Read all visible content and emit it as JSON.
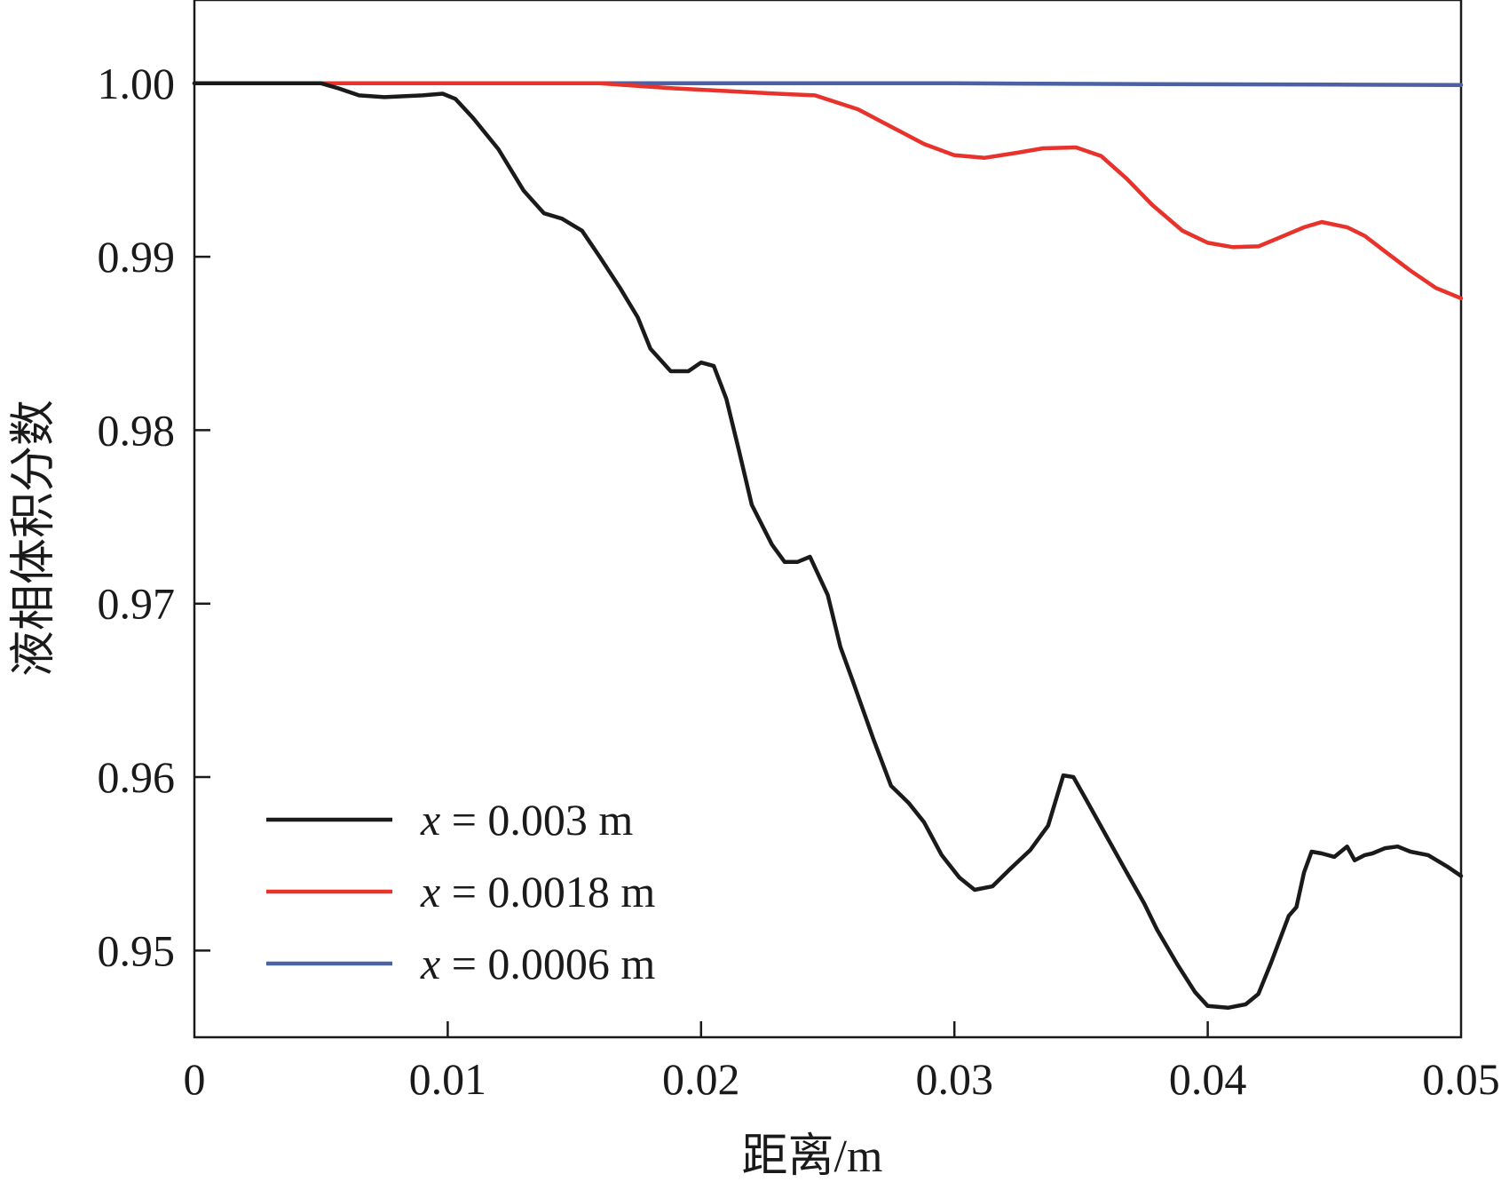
{
  "chart_data": {
    "type": "line",
    "xlabel": "距离/m",
    "ylabel": "液相体积分数",
    "xlim": [
      0,
      0.05
    ],
    "ylim": [
      0.945,
      1.0048
    ],
    "x_ticks": [
      0,
      0.01,
      0.02,
      0.03,
      0.04,
      0.05
    ],
    "x_tick_labels": [
      "0",
      "0.01",
      "0.02",
      "0.03",
      "0.04",
      "0.05"
    ],
    "y_ticks": [
      0.95,
      0.96,
      0.97,
      0.98,
      0.99,
      1.0
    ],
    "y_tick_labels": [
      "0.95",
      "0.96",
      "0.97",
      "0.98",
      "0.99",
      "1.00"
    ],
    "grid": false,
    "legend_position": "bottom-left",
    "series": [
      {
        "name": "x = 0.003 m",
        "legend_var": "x",
        "legend_rest": " = 0.003 m",
        "color": "#1a1a1a",
        "points": [
          [
            0,
            1.0
          ],
          [
            0.005,
            1.0
          ],
          [
            0.0057,
            0.9997
          ],
          [
            0.0065,
            0.9993
          ],
          [
            0.0075,
            0.9992
          ],
          [
            0.009,
            0.9993
          ],
          [
            0.0098,
            0.9994
          ],
          [
            0.0103,
            0.9991
          ],
          [
            0.011,
            0.998
          ],
          [
            0.012,
            0.9962
          ],
          [
            0.013,
            0.9938
          ],
          [
            0.0138,
            0.9925
          ],
          [
            0.0145,
            0.9922
          ],
          [
            0.0153,
            0.9915
          ],
          [
            0.016,
            0.99
          ],
          [
            0.0168,
            0.9882
          ],
          [
            0.0175,
            0.9865
          ],
          [
            0.018,
            0.9847
          ],
          [
            0.0188,
            0.9834
          ],
          [
            0.0195,
            0.9834
          ],
          [
            0.02,
            0.9839
          ],
          [
            0.0205,
            0.9837
          ],
          [
            0.021,
            0.9818
          ],
          [
            0.0215,
            0.9788
          ],
          [
            0.022,
            0.9757
          ],
          [
            0.0228,
            0.9734
          ],
          [
            0.0233,
            0.9724
          ],
          [
            0.0238,
            0.9724
          ],
          [
            0.0243,
            0.9727
          ],
          [
            0.025,
            0.9705
          ],
          [
            0.0255,
            0.9675
          ],
          [
            0.026,
            0.9655
          ],
          [
            0.0268,
            0.9622
          ],
          [
            0.0275,
            0.9595
          ],
          [
            0.0282,
            0.9585
          ],
          [
            0.0288,
            0.9574
          ],
          [
            0.0295,
            0.9555
          ],
          [
            0.0302,
            0.9542
          ],
          [
            0.0308,
            0.9535
          ],
          [
            0.0315,
            0.9537
          ],
          [
            0.0322,
            0.9547
          ],
          [
            0.033,
            0.9558
          ],
          [
            0.0337,
            0.9572
          ],
          [
            0.0343,
            0.9601
          ],
          [
            0.0347,
            0.96
          ],
          [
            0.0352,
            0.9587
          ],
          [
            0.036,
            0.9566
          ],
          [
            0.0368,
            0.9545
          ],
          [
            0.0375,
            0.9527
          ],
          [
            0.038,
            0.9512
          ],
          [
            0.0388,
            0.9492
          ],
          [
            0.0395,
            0.9476
          ],
          [
            0.04,
            0.9468
          ],
          [
            0.0408,
            0.9467
          ],
          [
            0.0415,
            0.9469
          ],
          [
            0.042,
            0.9475
          ],
          [
            0.0425,
            0.9493
          ],
          [
            0.0432,
            0.952
          ],
          [
            0.0435,
            0.9525
          ],
          [
            0.0438,
            0.9545
          ],
          [
            0.0441,
            0.9557
          ],
          [
            0.0445,
            0.9556
          ],
          [
            0.045,
            0.9554
          ],
          [
            0.0455,
            0.956
          ],
          [
            0.0458,
            0.9552
          ],
          [
            0.0462,
            0.9555
          ],
          [
            0.0465,
            0.9556
          ],
          [
            0.047,
            0.9559
          ],
          [
            0.0475,
            0.956
          ],
          [
            0.048,
            0.9557
          ],
          [
            0.0487,
            0.9555
          ],
          [
            0.0495,
            0.9548
          ],
          [
            0.05,
            0.9543
          ]
        ]
      },
      {
        "name": "x = 0.0018 m",
        "legend_var": "x",
        "legend_rest": " = 0.0018 m",
        "color": "#e8322c",
        "points": [
          [
            0,
            1.0
          ],
          [
            0.016,
            1.0
          ],
          [
            0.0175,
            0.99985
          ],
          [
            0.019,
            0.9997
          ],
          [
            0.021,
            0.99955
          ],
          [
            0.023,
            0.9994
          ],
          [
            0.0245,
            0.9993
          ],
          [
            0.0262,
            0.9985
          ],
          [
            0.0275,
            0.9975
          ],
          [
            0.0288,
            0.9965
          ],
          [
            0.03,
            0.99585
          ],
          [
            0.0312,
            0.9957
          ],
          [
            0.0325,
            0.996
          ],
          [
            0.0335,
            0.99625
          ],
          [
            0.0348,
            0.9963
          ],
          [
            0.0358,
            0.9958
          ],
          [
            0.0368,
            0.9945
          ],
          [
            0.0378,
            0.993
          ],
          [
            0.039,
            0.9915
          ],
          [
            0.04,
            0.9908
          ],
          [
            0.041,
            0.99055
          ],
          [
            0.042,
            0.9906
          ],
          [
            0.043,
            0.9912
          ],
          [
            0.0438,
            0.9917
          ],
          [
            0.0445,
            0.992
          ],
          [
            0.0455,
            0.9917
          ],
          [
            0.0462,
            0.9912
          ],
          [
            0.047,
            0.9903
          ],
          [
            0.048,
            0.9892
          ],
          [
            0.049,
            0.9882
          ],
          [
            0.05,
            0.9876
          ]
        ]
      },
      {
        "name": "x = 0.0006 m",
        "legend_var": "x",
        "legend_rest": " = 0.0006 m",
        "color": "#4a62a4",
        "points": [
          [
            0,
            1.0
          ],
          [
            0.03,
            1.0
          ],
          [
            0.038,
            0.99995
          ],
          [
            0.045,
            0.99992
          ],
          [
            0.05,
            0.9999
          ]
        ]
      }
    ]
  }
}
